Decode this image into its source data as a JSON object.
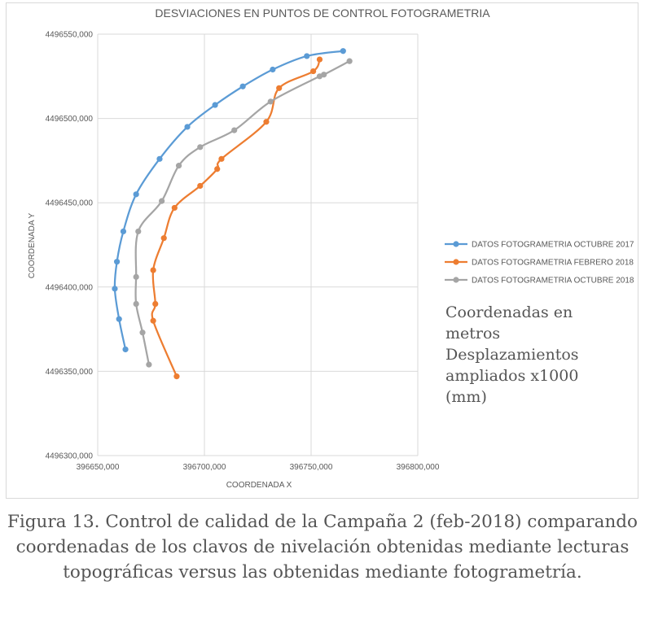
{
  "chart_data": {
    "type": "scatter",
    "title": "DESVIACIONES EN PUNTOS DE CONTROL FOTOGRAMETRIA",
    "xlabel": "COORDENADA X",
    "ylabel": "COORDENADA Y",
    "xlim": [
      396650,
      396800
    ],
    "ylim": [
      4496300,
      4496550
    ],
    "x_ticks": [
      396650,
      396700,
      396750,
      396800
    ],
    "x_tick_labels": [
      "396650,000",
      "396700,000",
      "396750,000",
      "396800,000"
    ],
    "y_ticks": [
      4496300,
      4496350,
      4496400,
      4496450,
      4496500,
      4496550
    ],
    "y_tick_labels": [
      "4496300,000",
      "4496350,000",
      "4496400,000",
      "4496450,000",
      "4496500,000",
      "4496550,000"
    ],
    "grid": true,
    "legend_position": "right",
    "series": [
      {
        "name": "DATOS FOTOGRAMETRIA OCTUBRE 2017",
        "color": "#5b9bd5",
        "points": [
          [
            396663,
            4496363
          ],
          [
            396660,
            4496381
          ],
          [
            396658,
            4496399
          ],
          [
            396659,
            4496415
          ],
          [
            396662,
            4496433
          ],
          [
            396668,
            4496455
          ],
          [
            396679,
            4496476
          ],
          [
            396692,
            4496495
          ],
          [
            396705,
            4496508
          ],
          [
            396718,
            4496519
          ],
          [
            396732,
            4496529
          ],
          [
            396748,
            4496537
          ],
          [
            396765,
            4496540
          ]
        ]
      },
      {
        "name": "DATOS FOTOGRAMETRIA FEBRERO 2018",
        "color": "#ed7d31",
        "points": [
          [
            396687,
            4496347
          ],
          [
            396676,
            4496380
          ],
          [
            396677,
            4496390
          ],
          [
            396676,
            4496410
          ],
          [
            396681,
            4496429
          ],
          [
            396686,
            4496447
          ],
          [
            396698,
            4496460
          ],
          [
            396706,
            4496470
          ],
          [
            396708,
            4496476
          ],
          [
            396729,
            4496498
          ],
          [
            396735,
            4496518
          ],
          [
            396751,
            4496528
          ],
          [
            396754,
            4496535
          ]
        ]
      },
      {
        "name": "DATOS FOTOGRAMETRIA OCTUBRE 2018",
        "color": "#a5a5a5",
        "points": [
          [
            396674,
            4496354
          ],
          [
            396671,
            4496373
          ],
          [
            396668,
            4496390
          ],
          [
            396668,
            4496406
          ],
          [
            396669,
            4496433
          ],
          [
            396680,
            4496451
          ],
          [
            396688,
            4496472
          ],
          [
            396698,
            4496483
          ],
          [
            396714,
            4496493
          ],
          [
            396731,
            4496510
          ],
          [
            396754,
            4496525
          ],
          [
            396756,
            4496526
          ],
          [
            396768,
            4496534
          ]
        ]
      }
    ]
  },
  "note": "Coordenadas en\nmetros\nDesplazamientos\nampliados x1000\n(mm)",
  "caption": "Figura 13. Control de calidad de la Campaña 2 (feb-2018) comparando coordenadas de los clavos de nivelación obtenidas mediante lecturas topográficas versus las obtenidas mediante fotogrametría."
}
